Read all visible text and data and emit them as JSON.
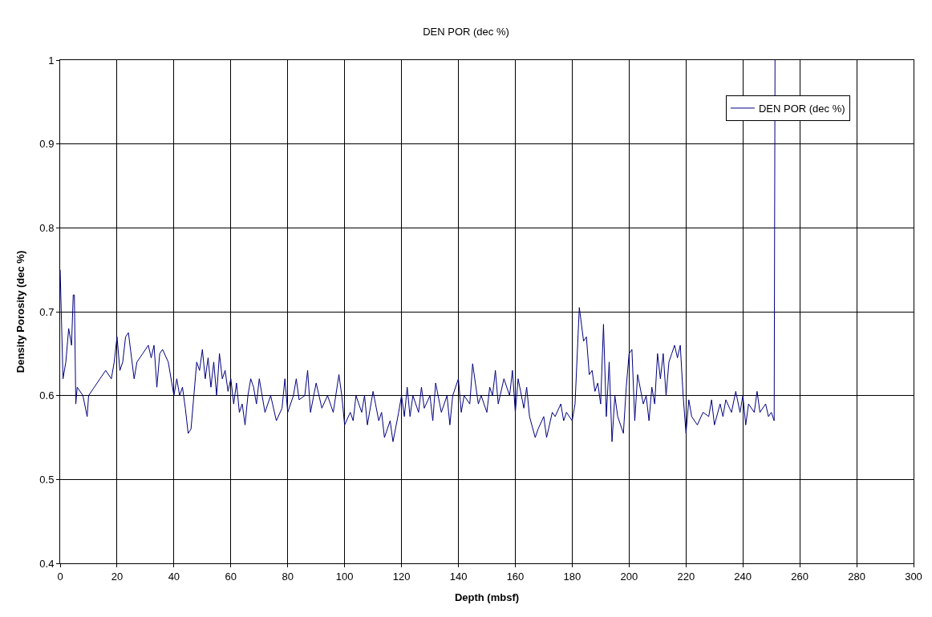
{
  "chart_data": {
    "type": "line",
    "title": "DEN POR (dec %)",
    "xlabel": "Depth (mbsf)",
    "ylabel": "Density Porosity (dec %)",
    "xlim": [
      0,
      300
    ],
    "xticks": [
      0,
      20,
      40,
      60,
      80,
      100,
      120,
      140,
      160,
      180,
      200,
      220,
      240,
      260,
      280,
      300
    ],
    "ylim": [
      0.4,
      1
    ],
    "yticks": [
      0.4,
      0.5,
      0.6,
      0.7,
      0.8,
      0.9,
      1
    ],
    "grid": true,
    "legend": "top right",
    "marker": "none",
    "line_style": "solid",
    "series": [
      {
        "name": "DEN POR (dec %)",
        "color": "#000080",
        "x": [
          0,
          1,
          2,
          3,
          4,
          4.6,
          5,
          5.5,
          6,
          8,
          9.5,
          10,
          12,
          14,
          16,
          18,
          19,
          20,
          21,
          22,
          23,
          24,
          26,
          27,
          29,
          31,
          32,
          33,
          34,
          35,
          36,
          38,
          40,
          41,
          42,
          43,
          44,
          45,
          46,
          47,
          48,
          49,
          50,
          51,
          52,
          53,
          54,
          55,
          56,
          57,
          58,
          59,
          60,
          61,
          62,
          63,
          64,
          65,
          66,
          67,
          68,
          69,
          70,
          72,
          74,
          76,
          78,
          79,
          80,
          82,
          83,
          84,
          86,
          87,
          88,
          90,
          92,
          94,
          96,
          98,
          99,
          100,
          102,
          103,
          104,
          106,
          107,
          108,
          110,
          112,
          113,
          114,
          116,
          117,
          119,
          120,
          121,
          122,
          123,
          124,
          126,
          127,
          128,
          130,
          131,
          132,
          134,
          136,
          137,
          138,
          140,
          141,
          142,
          144,
          145,
          147,
          148,
          150,
          151,
          152,
          153,
          154,
          156,
          158,
          159,
          160,
          161,
          163,
          164,
          165,
          167,
          168,
          170,
          171,
          173,
          174,
          176,
          177,
          178,
          180,
          181,
          182.5,
          184,
          185,
          186,
          187,
          188,
          189,
          190,
          191,
          192,
          193,
          194,
          195,
          196,
          198,
          199,
          200,
          201,
          202,
          203,
          205,
          206,
          207,
          208,
          209,
          210,
          211,
          212,
          213,
          214,
          215,
          216,
          217,
          218,
          219,
          220,
          221,
          222,
          224,
          226,
          228,
          229,
          230,
          232,
          233,
          234,
          236,
          237.5,
          239,
          240,
          241,
          242,
          244,
          245,
          246,
          248,
          249,
          250,
          251,
          251.3
        ],
        "values": [
          0.75,
          0.62,
          0.64,
          0.68,
          0.66,
          0.72,
          0.72,
          0.59,
          0.61,
          0.6,
          0.575,
          0.6,
          0.61,
          0.62,
          0.63,
          0.62,
          0.64,
          0.67,
          0.63,
          0.64,
          0.67,
          0.675,
          0.62,
          0.64,
          0.65,
          0.66,
          0.645,
          0.66,
          0.61,
          0.65,
          0.655,
          0.64,
          0.6,
          0.62,
          0.6,
          0.61,
          0.585,
          0.555,
          0.56,
          0.6,
          0.64,
          0.63,
          0.655,
          0.62,
          0.645,
          0.61,
          0.64,
          0.6,
          0.65,
          0.62,
          0.63,
          0.605,
          0.62,
          0.59,
          0.615,
          0.58,
          0.59,
          0.565,
          0.6,
          0.62,
          0.61,
          0.59,
          0.62,
          0.58,
          0.6,
          0.57,
          0.585,
          0.62,
          0.58,
          0.6,
          0.62,
          0.595,
          0.6,
          0.63,
          0.58,
          0.615,
          0.585,
          0.6,
          0.58,
          0.625,
          0.6,
          0.565,
          0.58,
          0.57,
          0.6,
          0.58,
          0.6,
          0.565,
          0.605,
          0.57,
          0.58,
          0.55,
          0.57,
          0.545,
          0.58,
          0.6,
          0.575,
          0.61,
          0.575,
          0.6,
          0.58,
          0.61,
          0.585,
          0.6,
          0.57,
          0.615,
          0.58,
          0.6,
          0.565,
          0.6,
          0.62,
          0.58,
          0.6,
          0.59,
          0.638,
          0.59,
          0.6,
          0.58,
          0.61,
          0.6,
          0.63,
          0.59,
          0.62,
          0.6,
          0.63,
          0.58,
          0.62,
          0.585,
          0.61,
          0.575,
          0.55,
          0.56,
          0.575,
          0.55,
          0.58,
          0.575,
          0.59,
          0.57,
          0.58,
          0.57,
          0.59,
          0.705,
          0.665,
          0.67,
          0.625,
          0.63,
          0.605,
          0.615,
          0.59,
          0.685,
          0.575,
          0.64,
          0.545,
          0.6,
          0.575,
          0.555,
          0.61,
          0.65,
          0.655,
          0.57,
          0.625,
          0.59,
          0.6,
          0.57,
          0.61,
          0.59,
          0.65,
          0.62,
          0.65,
          0.6,
          0.64,
          0.65,
          0.66,
          0.645,
          0.66,
          0.6,
          0.555,
          0.595,
          0.575,
          0.565,
          0.58,
          0.575,
          0.595,
          0.565,
          0.59,
          0.575,
          0.595,
          0.58,
          0.605,
          0.58,
          0.6,
          0.565,
          0.59,
          0.58,
          0.605,
          0.58,
          0.59,
          0.575,
          0.58,
          0.57,
          1
        ]
      }
    ]
  }
}
